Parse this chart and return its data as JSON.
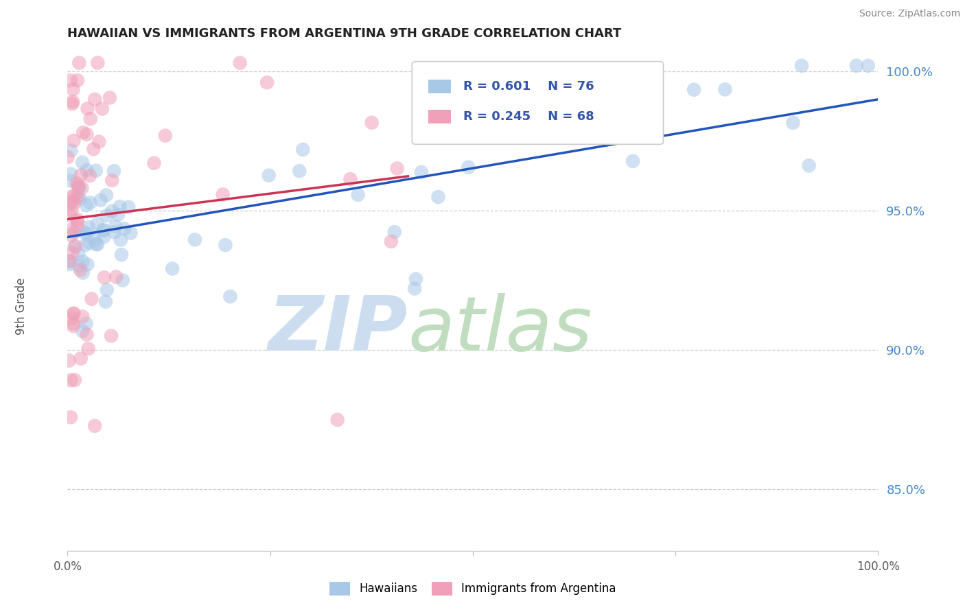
{
  "title": "HAWAIIAN VS IMMIGRANTS FROM ARGENTINA 9TH GRADE CORRELATION CHART",
  "source": "Source: ZipAtlas.com",
  "ylabel": "9th Grade",
  "ytick_labels": [
    "100.0%",
    "95.0%",
    "90.0%",
    "85.0%"
  ],
  "ytick_values": [
    1.0,
    0.95,
    0.9,
    0.85
  ],
  "xlim": [
    0.0,
    1.0
  ],
  "ylim": [
    0.828,
    1.008
  ],
  "blue_color": "#a8c8e8",
  "pink_color": "#f0a0b8",
  "trendline_blue": "#2255bb",
  "trendline_pink": "#cc3355",
  "ytick_color": "#4488cc",
  "title_color": "#222222",
  "source_color": "#888888",
  "ylabel_color": "#555555",
  "watermark_zip_color": "#ccddf0",
  "watermark_atlas_color": "#c0ddc0",
  "legend_box_color": "#ddddee",
  "legend_text_color": "#3355aa"
}
